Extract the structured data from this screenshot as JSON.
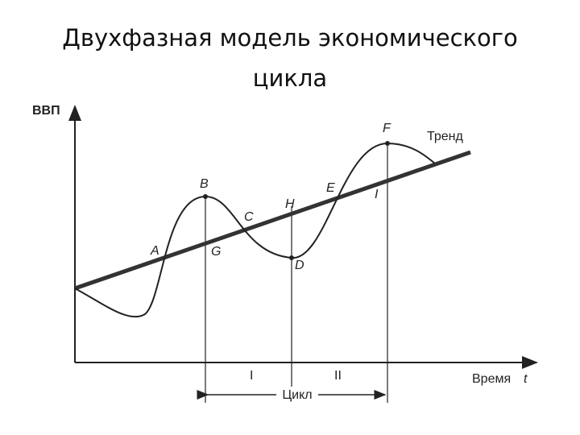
{
  "title": "Двухфазная модель экономического цикла",
  "axes": {
    "y_label": "ВВП",
    "x_label": "Время",
    "x_symbol": "t"
  },
  "trend_label": "Тренд",
  "points": [
    "A",
    "B",
    "C",
    "D",
    "E",
    "F",
    "G",
    "H",
    "I"
  ],
  "phases": [
    "I",
    "II"
  ],
  "cycle_label": "Цикл"
}
